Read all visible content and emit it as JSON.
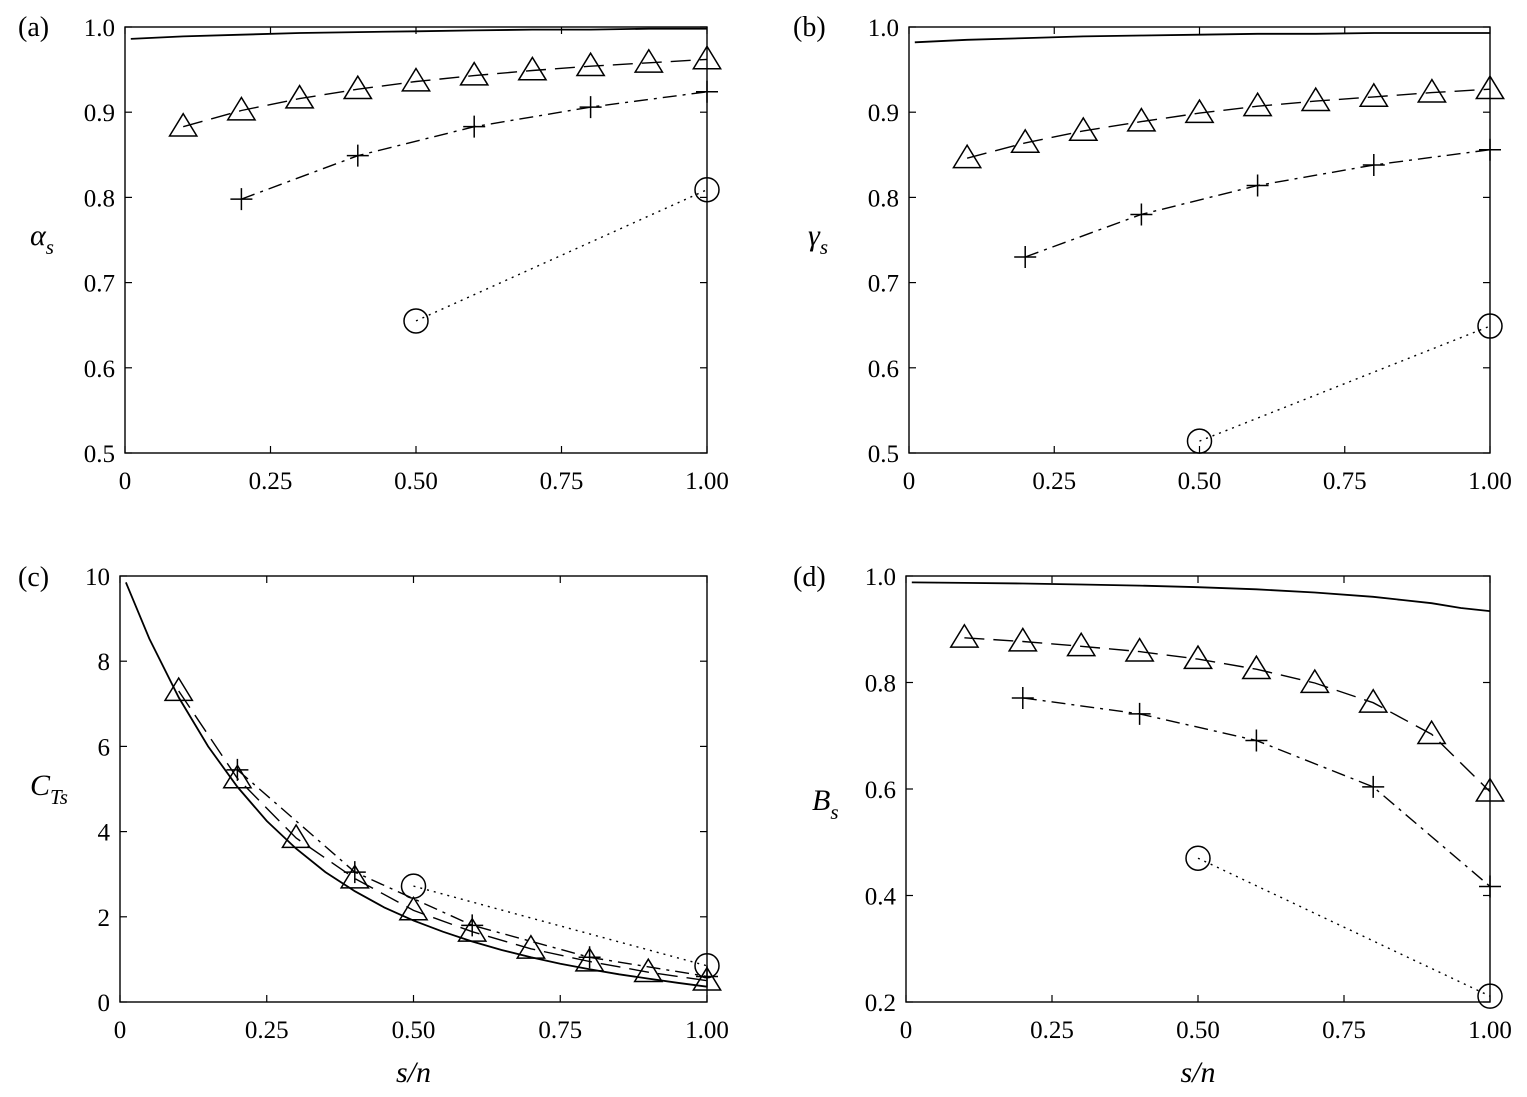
{
  "chart_data": [
    {
      "panel": "(a)",
      "type": "line",
      "ylabel": "α",
      "ylabel_sub": "s",
      "xlabel": "",
      "xlim": [
        0,
        1
      ],
      "ylim": [
        0.5,
        1.0
      ],
      "xticks": [
        "0",
        "0.25",
        "0.50",
        "0.75",
        "1.00"
      ],
      "yticks": [
        "0.5",
        "0.6",
        "0.7",
        "0.8",
        "0.9",
        "1.0"
      ],
      "series": [
        {
          "style": "solid",
          "marker": "none",
          "x": [
            0.01,
            0.1,
            0.2,
            0.3,
            0.4,
            0.5,
            0.6,
            0.7,
            0.8,
            0.9,
            1.0
          ],
          "y": [
            0.986,
            0.989,
            0.991,
            0.993,
            0.994,
            0.995,
            0.996,
            0.997,
            0.997,
            0.998,
            0.998
          ]
        },
        {
          "style": "dashed",
          "marker": "triangle",
          "x": [
            0.1,
            0.2,
            0.3,
            0.4,
            0.5,
            0.6,
            0.7,
            0.8,
            0.9,
            1.0
          ],
          "y": [
            0.883,
            0.902,
            0.916,
            0.927,
            0.936,
            0.943,
            0.949,
            0.954,
            0.958,
            0.962
          ]
        },
        {
          "style": "dashdot",
          "marker": "plus",
          "x": [
            0.2,
            0.4,
            0.6,
            0.8,
            1.0
          ],
          "y": [
            0.798,
            0.849,
            0.883,
            0.906,
            0.924
          ]
        },
        {
          "style": "dotted",
          "marker": "circle",
          "x": [
            0.5,
            1.0
          ],
          "y": [
            0.655,
            0.809
          ]
        }
      ]
    },
    {
      "panel": "(b)",
      "type": "line",
      "ylabel": "γ",
      "ylabel_sub": "s",
      "xlabel": "",
      "xlim": [
        0,
        1
      ],
      "ylim": [
        0.5,
        1.0
      ],
      "xticks": [
        "0",
        "0.25",
        "0.50",
        "0.75",
        "1.00"
      ],
      "yticks": [
        "0.5",
        "0.6",
        "0.7",
        "0.8",
        "0.9",
        "1.0"
      ],
      "series": [
        {
          "style": "solid",
          "marker": "none",
          "x": [
            0.01,
            0.1,
            0.2,
            0.3,
            0.4,
            0.5,
            0.6,
            0.7,
            0.8,
            0.9,
            1.0
          ],
          "y": [
            0.982,
            0.985,
            0.987,
            0.989,
            0.99,
            0.991,
            0.992,
            0.992,
            0.993,
            0.993,
            0.993
          ]
        },
        {
          "style": "dashed",
          "marker": "triangle",
          "x": [
            0.1,
            0.2,
            0.3,
            0.4,
            0.5,
            0.6,
            0.7,
            0.8,
            0.9,
            1.0
          ],
          "y": [
            0.846,
            0.864,
            0.878,
            0.889,
            0.899,
            0.907,
            0.913,
            0.918,
            0.923,
            0.927
          ]
        },
        {
          "style": "dashdot",
          "marker": "plus",
          "x": [
            0.2,
            0.4,
            0.6,
            0.8,
            1.0
          ],
          "y": [
            0.73,
            0.78,
            0.814,
            0.838,
            0.856
          ]
        },
        {
          "style": "dotted",
          "marker": "circle",
          "x": [
            0.5,
            1.0
          ],
          "y": [
            0.514,
            0.649
          ]
        }
      ]
    },
    {
      "panel": "(c)",
      "type": "line",
      "ylabel": "C",
      "ylabel_sub": "Ts",
      "xlabel": "s/n",
      "xlim": [
        0,
        1
      ],
      "ylim": [
        0,
        10
      ],
      "xticks": [
        "0",
        "0.25",
        "0.50",
        "0.75",
        "1.00"
      ],
      "yticks": [
        "0",
        "2",
        "4",
        "6",
        "8",
        "10"
      ],
      "series": [
        {
          "style": "solid",
          "marker": "none",
          "x": [
            0.01,
            0.05,
            0.1,
            0.15,
            0.2,
            0.25,
            0.3,
            0.35,
            0.4,
            0.45,
            0.5,
            0.55,
            0.6,
            0.65,
            0.7,
            0.75,
            0.8,
            0.85,
            0.9,
            0.95,
            1.0
          ],
          "y": [
            9.85,
            8.53,
            7.15,
            6.0,
            5.05,
            4.25,
            3.6,
            3.05,
            2.6,
            2.22,
            1.91,
            1.65,
            1.42,
            1.22,
            1.05,
            0.9,
            0.77,
            0.65,
            0.55,
            0.45,
            0.36
          ]
        },
        {
          "style": "dashed",
          "marker": "triangle",
          "x": [
            0.1,
            0.2,
            0.3,
            0.4,
            0.5,
            0.6,
            0.7,
            0.8,
            0.9,
            1.0
          ],
          "y": [
            7.3,
            5.25,
            3.85,
            2.9,
            2.15,
            1.65,
            1.25,
            0.95,
            0.7,
            0.5
          ]
        },
        {
          "style": "dashdot",
          "marker": "plus",
          "x": [
            0.2,
            0.4,
            0.6,
            0.8,
            1.0
          ],
          "y": [
            5.45,
            3.05,
            1.8,
            1.05,
            0.6
          ]
        },
        {
          "style": "dotted",
          "marker": "circle",
          "x": [
            0.5,
            1.0
          ],
          "y": [
            2.72,
            0.85
          ]
        }
      ]
    },
    {
      "panel": "(d)",
      "type": "line",
      "ylabel": "B",
      "ylabel_sub": "s",
      "xlabel": "s/n",
      "xlim": [
        0,
        1
      ],
      "ylim": [
        0.2,
        1.0
      ],
      "xticks": [
        "0",
        "0.25",
        "0.50",
        "0.75",
        "1.00"
      ],
      "yticks": [
        "0.2",
        "0.4",
        "0.6",
        "0.8",
        "1.0"
      ],
      "series": [
        {
          "style": "solid",
          "marker": "none",
          "x": [
            0.01,
            0.1,
            0.2,
            0.3,
            0.4,
            0.5,
            0.6,
            0.7,
            0.8,
            0.85,
            0.9,
            0.95,
            1.0
          ],
          "y": [
            0.988,
            0.987,
            0.986,
            0.984,
            0.982,
            0.979,
            0.975,
            0.969,
            0.961,
            0.955,
            0.949,
            0.94,
            0.934
          ]
        },
        {
          "style": "dashed",
          "marker": "triangle",
          "x": [
            0.1,
            0.2,
            0.3,
            0.4,
            0.5,
            0.6,
            0.7,
            0.8,
            0.9,
            1.0
          ],
          "y": [
            0.884,
            0.877,
            0.868,
            0.858,
            0.844,
            0.825,
            0.799,
            0.762,
            0.703,
            0.595
          ]
        },
        {
          "style": "dashdot",
          "marker": "plus",
          "x": [
            0.2,
            0.4,
            0.6,
            0.8,
            1.0
          ],
          "y": [
            0.771,
            0.741,
            0.691,
            0.604,
            0.417
          ]
        },
        {
          "style": "dotted",
          "marker": "circle",
          "x": [
            0.5,
            1.0
          ],
          "y": [
            0.47,
            0.211
          ]
        }
      ]
    }
  ]
}
